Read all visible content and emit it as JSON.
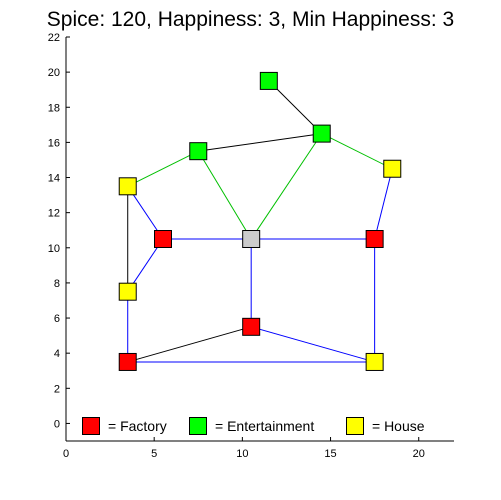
{
  "header": {
    "title": "Spice: 120, Happiness: 3, Min Happiness: 3"
  },
  "colors": {
    "factory": "#ff0000",
    "entertainment": "#00ff00",
    "house": "#ffff00",
    "center": "#cccccc",
    "road": "#0000ff",
    "entertainment_link": "#00c000",
    "other_link": "#000000"
  },
  "legend": {
    "items": [
      {
        "type": "factory",
        "label": "= Factory"
      },
      {
        "type": "entertainment",
        "label": "= Entertainment"
      },
      {
        "type": "house",
        "label": "= House"
      }
    ]
  },
  "chart_data": {
    "type": "scatter",
    "title": "Spice: 120, Happiness: 3, Min Happiness: 3",
    "xlim": [
      0,
      22
    ],
    "ylim": [
      -1,
      22
    ],
    "x_ticks": [
      0,
      5,
      10,
      15,
      20
    ],
    "y_ticks": [
      0,
      2,
      4,
      6,
      8,
      10,
      12,
      14,
      16,
      18,
      20,
      22
    ],
    "nodes": [
      {
        "id": "f1",
        "type": "factory",
        "x": 5.5,
        "y": 10.5
      },
      {
        "id": "f2",
        "type": "factory",
        "x": 17.5,
        "y": 10.5
      },
      {
        "id": "f3",
        "type": "factory",
        "x": 10.5,
        "y": 5.5
      },
      {
        "id": "f4",
        "type": "factory",
        "x": 3.5,
        "y": 3.5
      },
      {
        "id": "c",
        "type": "center",
        "x": 10.5,
        "y": 10.5
      },
      {
        "id": "e1",
        "type": "entertainment",
        "x": 11.5,
        "y": 19.5
      },
      {
        "id": "e2",
        "type": "entertainment",
        "x": 14.5,
        "y": 16.5
      },
      {
        "id": "e3",
        "type": "entertainment",
        "x": 7.5,
        "y": 15.5
      },
      {
        "id": "h1",
        "type": "house",
        "x": 3.5,
        "y": 13.5
      },
      {
        "id": "h2",
        "type": "house",
        "x": 18.5,
        "y": 14.5
      },
      {
        "id": "h3",
        "type": "house",
        "x": 3.5,
        "y": 7.5
      },
      {
        "id": "h4",
        "type": "house",
        "x": 17.5,
        "y": 3.5
      }
    ],
    "edges": [
      {
        "from": "e1",
        "to": "e2",
        "kind": "other"
      },
      {
        "from": "e3",
        "to": "e2",
        "kind": "other"
      },
      {
        "from": "h1",
        "to": "e3",
        "kind": "entertainment"
      },
      {
        "from": "e3",
        "to": "c",
        "kind": "entertainment"
      },
      {
        "from": "e2",
        "to": "c",
        "kind": "entertainment"
      },
      {
        "from": "e2",
        "to": "h2",
        "kind": "entertainment"
      },
      {
        "from": "h2",
        "to": "f2",
        "kind": "road"
      },
      {
        "from": "h1",
        "to": "f1",
        "kind": "road"
      },
      {
        "from": "h1",
        "to": "h3",
        "kind": "other"
      },
      {
        "from": "f1",
        "to": "h3",
        "kind": "road"
      },
      {
        "from": "f1",
        "to": "c",
        "kind": "road"
      },
      {
        "from": "c",
        "to": "f2",
        "kind": "road"
      },
      {
        "from": "c",
        "to": "f3",
        "kind": "road"
      },
      {
        "from": "h3",
        "to": "f4",
        "kind": "road"
      },
      {
        "from": "f4",
        "to": "h4",
        "kind": "road"
      },
      {
        "from": "f2",
        "to": "h4",
        "kind": "road"
      },
      {
        "from": "f4",
        "to": "f3",
        "kind": "other"
      },
      {
        "from": "f3",
        "to": "h4",
        "kind": "road"
      }
    ]
  }
}
